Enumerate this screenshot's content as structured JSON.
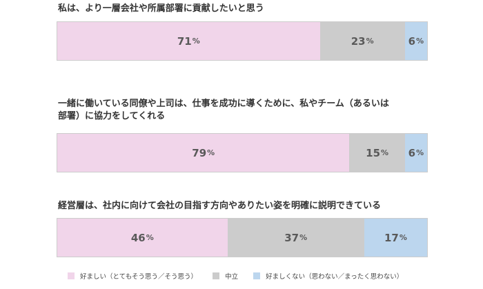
{
  "colors": {
    "positive": "#f1d5ea",
    "neutral": "#cccccc",
    "negative": "#bcd6ee"
  },
  "chart_data": {
    "type": "bar",
    "orientation": "horizontal-stacked-100",
    "series_names": [
      "好ましい（とてもそう思う／そう思う）",
      "中立",
      "好ましくない（思わない／まったく思わない）"
    ],
    "questions": [
      {
        "title_lines": [
          "私は、より一層会社や所属部署に貢献したいと思う"
        ],
        "values": [
          71,
          23,
          6
        ]
      },
      {
        "title_lines": [
          "一緒に働いている同僚や上司は、仕事を成功に導くために、私やチーム（あるいは",
          "部署）に協力をしてくれる"
        ],
        "values": [
          79,
          15,
          6
        ]
      },
      {
        "title_lines": [
          "経営層は、社内に向けて会社の目指す方向やありたい姿を明確に説明できている"
        ],
        "values": [
          46,
          37,
          17
        ]
      }
    ],
    "unit": "%",
    "legend_position": "bottom"
  }
}
